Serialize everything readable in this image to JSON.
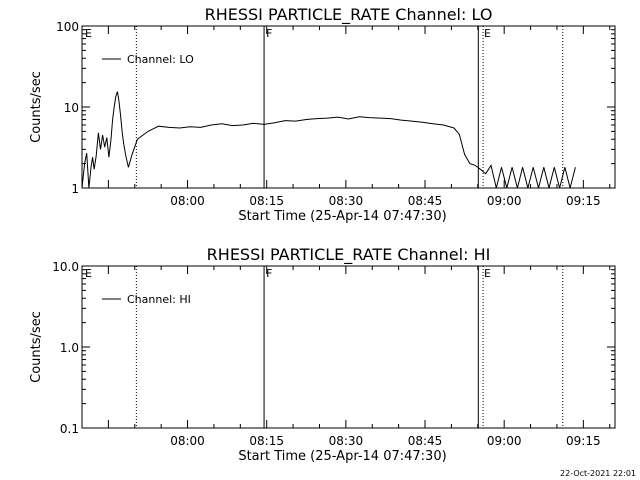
{
  "chart_data": [
    {
      "type": "line",
      "title": "RHESSI PARTICLE_RATE Channel: LO",
      "xlabel": "Start Time (25-Apr-14 07:47:30)",
      "ylabel": "Counts/sec",
      "yscale": "log",
      "ylim": [
        1,
        100
      ],
      "yticks": [
        "1",
        "10",
        "100"
      ],
      "xticks": [
        "08:00",
        "08:15",
        "08:30",
        "08:45",
        "09:00",
        "09:15"
      ],
      "x_minutes_range": [
        -7.5,
        93.5
      ],
      "grid": false,
      "legend_position": "top-left",
      "series": [
        {
          "name": "Channel: LO",
          "x": [
            -7.5,
            -7.0,
            -6.6,
            -6.2,
            -5.8,
            -5.5,
            -5.2,
            -4.8,
            -4.4,
            -4.0,
            -3.6,
            -3.2,
            -2.8,
            -2.4,
            -2.0,
            -1.7,
            -1.4,
            -1.1,
            -0.8,
            -0.5,
            -0.2,
            0.1,
            0.4,
            0.8,
            1.3,
            2.0,
            3.0,
            5,
            7,
            9,
            11,
            13,
            15,
            17,
            19,
            21,
            23,
            25,
            27,
            29,
            31,
            33,
            35,
            37,
            39,
            41,
            43,
            45,
            47,
            49,
            51,
            53,
            55,
            57,
            59,
            61,
            63,
            64,
            65,
            66,
            67,
            68,
            69,
            70,
            71,
            72,
            73,
            74,
            75,
            76,
            77,
            78,
            79,
            80,
            81,
            82,
            83,
            84,
            85,
            86
          ],
          "values": [
            1.0,
            2.0,
            2.7,
            1.0,
            1.8,
            2.4,
            1.7,
            2.5,
            4.8,
            3.0,
            4.5,
            3.2,
            4.2,
            2.4,
            4.0,
            7.0,
            10.0,
            13.5,
            15.5,
            12.0,
            8.0,
            5.0,
            3.5,
            2.5,
            1.8,
            2.6,
            4.0,
            5.0,
            5.8,
            5.6,
            5.5,
            5.7,
            5.6,
            6.0,
            6.2,
            5.9,
            6.0,
            6.3,
            6.1,
            6.4,
            6.8,
            6.7,
            7.0,
            7.2,
            7.3,
            7.5,
            7.1,
            7.6,
            7.4,
            7.3,
            7.2,
            6.9,
            6.7,
            6.5,
            6.2,
            6.0,
            5.5,
            4.6,
            2.6,
            2.0,
            1.9,
            1.7,
            1.5,
            1.9,
            1.0,
            1.8,
            1.0,
            1.8,
            1.0,
            1.8,
            1.0,
            1.8,
            1.0,
            1.8,
            1.0,
            1.8,
            1.0,
            1.8,
            1.0,
            1.8
          ]
        }
      ],
      "flags": [
        {
          "label": "E",
          "at": -7.3
        },
        {
          "label": "F",
          "at": 27.0
        },
        {
          "label": "E",
          "at": 68.3
        }
      ],
      "solid_lines": [
        27.0,
        67.6
      ],
      "dotted_lines": [
        2.8,
        68.5,
        83.6
      ]
    },
    {
      "type": "line",
      "title": "RHESSI PARTICLE_RATE Channel: HI",
      "xlabel": "Start Time (25-Apr-14 07:47:30)",
      "ylabel": "Counts/sec",
      "yscale": "log",
      "ylim": [
        0.1,
        10.0
      ],
      "yticks": [
        "0.1",
        "1.0",
        "10.0"
      ],
      "xticks": [
        "08:00",
        "08:15",
        "08:30",
        "08:45",
        "09:00",
        "09:15"
      ],
      "x_minutes_range": [
        -7.5,
        93.5
      ],
      "grid": false,
      "legend_position": "top-left",
      "series": [
        {
          "name": "Channel: HI",
          "x": [],
          "values": []
        }
      ],
      "flags": [
        {
          "label": "E",
          "at": -7.3
        },
        {
          "label": "F",
          "at": 27.0
        },
        {
          "label": "E",
          "at": 68.3
        }
      ],
      "solid_lines": [
        27.0,
        67.6
      ],
      "dotted_lines": [
        2.8,
        68.5,
        83.6
      ]
    }
  ],
  "footer": {
    "timestamp": "22-Oct-2021 22:01"
  }
}
